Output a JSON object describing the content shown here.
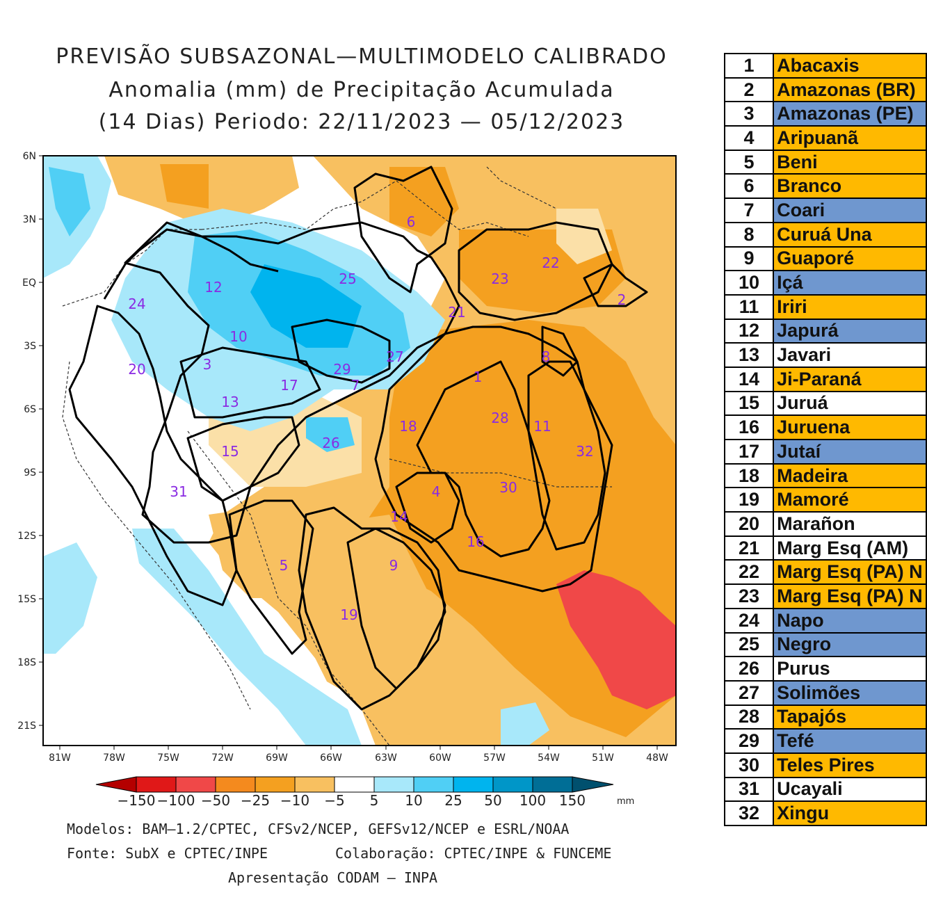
{
  "title": {
    "line1": "PREVISÃO SUBSAZONAL—MULTIMODELO CALIBRADO",
    "line2": "Anomalia (mm) de Precipitação Acumulada",
    "line3": "(14 Dias) Periodo: 22/11/2023 — 05/12/2023"
  },
  "axes": {
    "lat_labels": [
      "6N",
      "3N",
      "EQ",
      "3S",
      "6S",
      "9S",
      "12S",
      "15S",
      "18S",
      "21S"
    ],
    "lon_labels": [
      "81W",
      "78W",
      "75W",
      "72W",
      "69W",
      "66W",
      "63W",
      "60W",
      "57W",
      "54W",
      "51W",
      "48W"
    ]
  },
  "colorbar": {
    "labels": [
      "−150",
      "−100",
      "−50",
      "−25",
      "−10",
      "−5",
      "5",
      "10",
      "25",
      "50",
      "100",
      "150"
    ],
    "unit": "mm",
    "colors": [
      "#b40000",
      "#e01818",
      "#f04848",
      "#f48a1e",
      "#f4a020",
      "#f8c060",
      "#fbe0a8",
      "#ffffff",
      "#a8e8fa",
      "#50cff5",
      "#00b4ee",
      "#0096c8",
      "#006e96",
      "#00506e"
    ]
  },
  "basin_labels": [
    {
      "id": "1"
    },
    {
      "id": "2"
    },
    {
      "id": "3"
    },
    {
      "id": "4"
    },
    {
      "id": "5"
    },
    {
      "id": "6"
    },
    {
      "id": "7"
    },
    {
      "id": "8"
    },
    {
      "id": "9"
    },
    {
      "id": "10"
    },
    {
      "id": "11"
    },
    {
      "id": "12"
    },
    {
      "id": "13"
    },
    {
      "id": "14"
    },
    {
      "id": "15"
    },
    {
      "id": "16"
    },
    {
      "id": "17"
    },
    {
      "id": "18"
    },
    {
      "id": "19"
    },
    {
      "id": "20"
    },
    {
      "id": "21"
    },
    {
      "id": "22"
    },
    {
      "id": "23"
    },
    {
      "id": "24"
    },
    {
      "id": "25"
    },
    {
      "id": "26"
    },
    {
      "id": "27"
    },
    {
      "id": "28"
    },
    {
      "id": "29"
    },
    {
      "id": "30"
    },
    {
      "id": "31"
    },
    {
      "id": "32"
    }
  ],
  "footer": {
    "models": "Modelos: BAM—1.2/CPTEC, CFSv2/NCEP, GEFSv12/NCEP e ESRL/NOAA",
    "source": "Fonte: SubX e CPTEC/INPE",
    "collab": "Colaboração: CPTEC/INPE & FUNCEME",
    "presentation": "Apresentação CODAM — INPA"
  },
  "basins_table": [
    {
      "num": "1",
      "name": "Abacaxis",
      "color": "#ffb900"
    },
    {
      "num": "2",
      "name": "Amazonas (BR)",
      "color": "#ffb900"
    },
    {
      "num": "3",
      "name": "Amazonas (PE)",
      "color": "#6f97cf"
    },
    {
      "num": "4",
      "name": "Aripuanã",
      "color": "#ffb900"
    },
    {
      "num": "5",
      "name": "Beni",
      "color": "#ffb900"
    },
    {
      "num": "6",
      "name": "Branco",
      "color": "#ffb900"
    },
    {
      "num": "7",
      "name": "Coari",
      "color": "#6f97cf"
    },
    {
      "num": "8",
      "name": "Curuá Una",
      "color": "#ffb900"
    },
    {
      "num": "9",
      "name": "Guaporé",
      "color": "#ffb900"
    },
    {
      "num": "10",
      "name": "Içá",
      "color": "#6f97cf"
    },
    {
      "num": "11",
      "name": "Iriri",
      "color": "#ffb900"
    },
    {
      "num": "12",
      "name": "Japurá",
      "color": "#6f97cf"
    },
    {
      "num": "13",
      "name": "Javari",
      "color": "#ffffff"
    },
    {
      "num": "14",
      "name": "Ji-Paraná",
      "color": "#ffb900"
    },
    {
      "num": "15",
      "name": "Juruá",
      "color": "#ffffff"
    },
    {
      "num": "16",
      "name": "Juruena",
      "color": "#ffb900"
    },
    {
      "num": "17",
      "name": "Jutaí",
      "color": "#6f97cf"
    },
    {
      "num": "18",
      "name": "Madeira",
      "color": "#ffb900"
    },
    {
      "num": "19",
      "name": "Mamoré",
      "color": "#ffb900"
    },
    {
      "num": "20",
      "name": "Marañon",
      "color": "#ffffff"
    },
    {
      "num": "21",
      "name": "Marg Esq (AM)",
      "color": "#ffffff"
    },
    {
      "num": "22",
      "name": "Marg Esq (PA) N",
      "color": "#ffb900"
    },
    {
      "num": "23",
      "name": "Marg Esq (PA) N",
      "color": "#ffb900"
    },
    {
      "num": "24",
      "name": "Napo",
      "color": "#6f97cf"
    },
    {
      "num": "25",
      "name": "Negro",
      "color": "#6f97cf"
    },
    {
      "num": "26",
      "name": "Purus",
      "color": "#ffffff"
    },
    {
      "num": "27",
      "name": "Solimões",
      "color": "#6f97cf"
    },
    {
      "num": "28",
      "name": "Tapajós",
      "color": "#ffb900"
    },
    {
      "num": "29",
      "name": "Tefé",
      "color": "#6f97cf"
    },
    {
      "num": "30",
      "name": "Teles Pires",
      "color": "#ffb900"
    },
    {
      "num": "31",
      "name": "Ucayali",
      "color": "#ffffff"
    },
    {
      "num": "32",
      "name": "Xingu",
      "color": "#ffb900"
    }
  ]
}
